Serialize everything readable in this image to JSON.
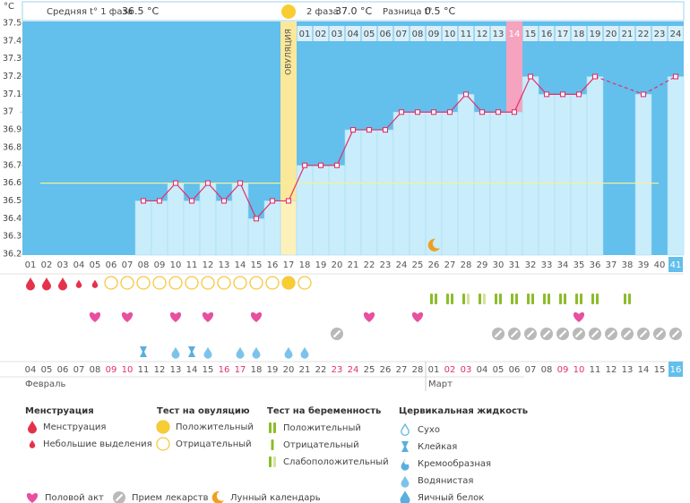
{
  "chart_data": {
    "type": "bbt",
    "y_axis_label": "°C",
    "ylim": [
      36.2,
      37.5
    ],
    "yticks": [
      36.2,
      36.3,
      36.4,
      36.5,
      36.6,
      36.7,
      36.8,
      36.9,
      37,
      37.1,
      37.2,
      37.3,
      37.4,
      37.5
    ],
    "categories": [
      "01",
      "02",
      "03",
      "04",
      "05",
      "06",
      "07",
      "08",
      "09",
      "10",
      "11",
      "12",
      "13",
      "14",
      "15",
      "16",
      "17",
      "18",
      "19",
      "20",
      "21",
      "22",
      "23",
      "24",
      "25",
      "26",
      "27",
      "28",
      "29",
      "30",
      "31",
      "32",
      "33",
      "34",
      "35",
      "36",
      "37",
      "38",
      "39",
      "40",
      "41"
    ],
    "values": [
      null,
      null,
      null,
      null,
      null,
      null,
      null,
      36.5,
      36.5,
      36.6,
      36.5,
      36.6,
      36.5,
      36.6,
      36.4,
      36.5,
      36.5,
      36.7,
      36.7,
      36.7,
      36.9,
      36.9,
      36.9,
      37.0,
      37.0,
      37.0,
      37.0,
      37.1,
      37.0,
      37.0,
      37.0,
      37.2,
      37.1,
      37.1,
      37.1,
      37.2,
      null,
      null,
      37.1,
      null,
      37.2
    ],
    "color": "#e2306c",
    "coverline": 36.6,
    "stats": [
      {
        "label": "Средняя t° 1 фаза",
        "value": "36.5 °C"
      },
      {
        "label": "2 фаза",
        "value": "37.0 °C"
      },
      {
        "label": "Разница t°",
        "value": "0.5 °C"
      }
    ],
    "phase2_labels": [
      null,
      null,
      null,
      null,
      null,
      null,
      null,
      null,
      null,
      null,
      null,
      null,
      null,
      null,
      null,
      null,
      null,
      "01",
      "02",
      "03",
      "04",
      "05",
      "06",
      "07",
      "08",
      "09",
      "10",
      "11",
      "12",
      "13",
      "14",
      "15",
      "16",
      "17",
      "18",
      "19",
      "20",
      "21",
      "22",
      "23",
      "24"
    ],
    "ovulation_index": 16,
    "ovulation_label": "ОВУЛЯЦИЯ",
    "highlight_index": 30,
    "today_index": 40,
    "moon_index": 25,
    "dates": [
      "04",
      "05",
      "06",
      "07",
      "08",
      "09",
      "10",
      "11",
      "12",
      "13",
      "14",
      "15",
      "16",
      "17",
      "18",
      "19",
      "20",
      "21",
      "22",
      "23",
      "24",
      "25",
      "26",
      "27",
      "28",
      "01",
      "02",
      "03",
      "04",
      "05",
      "06",
      "07",
      "08",
      "09",
      "10",
      "11",
      "12",
      "13",
      "14",
      "15",
      "16"
    ],
    "weekend": [
      false,
      false,
      false,
      false,
      false,
      true,
      true,
      false,
      false,
      false,
      false,
      false,
      true,
      true,
      false,
      false,
      false,
      false,
      false,
      true,
      true,
      false,
      false,
      false,
      false,
      false,
      true,
      true,
      false,
      false,
      false,
      false,
      false,
      true,
      true,
      false,
      false,
      false,
      false,
      false,
      true
    ],
    "months": [
      {
        "label": "Февраль",
        "index": 0
      },
      {
        "label": "Март",
        "index": 25
      }
    ],
    "menstruation": [
      "heavy",
      "heavy",
      "heavy",
      "light",
      "light",
      null,
      null,
      null,
      null,
      null,
      null,
      null,
      null,
      null,
      null,
      null,
      null,
      null,
      null,
      null,
      null,
      null,
      null,
      null,
      null,
      null,
      null,
      null,
      null,
      null,
      null,
      null,
      null,
      null,
      null,
      null,
      null,
      null,
      null,
      null,
      null
    ],
    "ovulation_test": [
      null,
      null,
      null,
      null,
      null,
      "negative",
      "negative",
      "negative",
      "negative",
      "negative",
      "negative",
      "negative",
      "negative",
      "negative",
      "negative",
      "negative",
      "positive",
      "negative",
      null,
      null,
      null,
      null,
      null,
      null,
      null,
      null,
      null,
      null,
      null,
      null,
      null,
      null,
      null,
      null,
      null,
      null,
      null,
      null,
      null,
      null,
      null
    ],
    "pregnancy_test": [
      null,
      null,
      null,
      null,
      null,
      null,
      null,
      null,
      null,
      null,
      null,
      null,
      null,
      null,
      null,
      null,
      null,
      null,
      null,
      null,
      null,
      null,
      null,
      null,
      null,
      "positive",
      "positive",
      "weak",
      "weak",
      "positive",
      "positive",
      "positive",
      "positive",
      "positive",
      "positive",
      "positive",
      null,
      "positive",
      null,
      null,
      null
    ],
    "intercourse": [
      null,
      null,
      null,
      null,
      true,
      null,
      true,
      null,
      null,
      true,
      null,
      true,
      null,
      null,
      true,
      null,
      null,
      null,
      null,
      null,
      null,
      true,
      null,
      null,
      true,
      null,
      null,
      null,
      null,
      null,
      null,
      null,
      null,
      null,
      true,
      null,
      null,
      null,
      null,
      null,
      null
    ],
    "medication": [
      null,
      null,
      null,
      null,
      null,
      null,
      null,
      null,
      null,
      null,
      null,
      null,
      null,
      null,
      null,
      null,
      null,
      null,
      null,
      true,
      null,
      null,
      null,
      null,
      null,
      null,
      null,
      null,
      null,
      true,
      true,
      true,
      true,
      true,
      true,
      true,
      true,
      true,
      true,
      true,
      true
    ],
    "cervical_fluid": [
      null,
      null,
      null,
      null,
      null,
      null,
      null,
      "sticky",
      null,
      "watery",
      "sticky",
      "watery",
      null,
      "watery",
      "watery",
      null,
      "watery",
      "watery",
      null,
      null,
      null,
      null,
      null,
      null,
      null,
      null,
      null,
      null,
      null,
      null,
      null,
      null,
      null,
      null,
      null,
      null,
      null,
      null,
      null,
      null,
      null
    ],
    "legend": {
      "menstruation": {
        "title": "Менструация",
        "items": [
          "Менструация",
          "Небольшие выделения"
        ]
      },
      "ovulation_test": {
        "title": "Тест на овуляцию",
        "items": [
          "Положительный",
          "Отрицательный"
        ]
      },
      "pregnancy_test": {
        "title": "Тест на беременность",
        "items": [
          "Положительный",
          "Отрицательный",
          "Слабоположительный"
        ]
      },
      "cervical_fluid": {
        "title": "Цервикальная жидкость",
        "items": [
          "Сухо",
          "Клейкая",
          "Кремообразная",
          "Водянистая",
          "Яичный белок"
        ]
      },
      "other": [
        "Половой акт",
        "Прием лекарств",
        "Лунный календарь"
      ]
    }
  }
}
